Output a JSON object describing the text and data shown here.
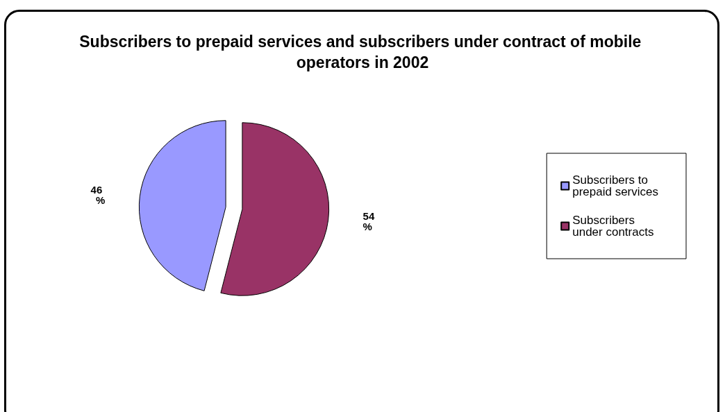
{
  "chart_data": {
    "type": "pie",
    "title": "Subscribers to prepaid services and subscribers under contract of mobile operators in 2002",
    "categories": [
      "Subscribers to prepaid services",
      "Subscribers under contracts"
    ],
    "values": [
      46,
      54
    ],
    "colors": [
      "#9999ff",
      "#993366"
    ],
    "value_labels": [
      "46 %",
      "54 %"
    ],
    "legend": "right"
  }
}
